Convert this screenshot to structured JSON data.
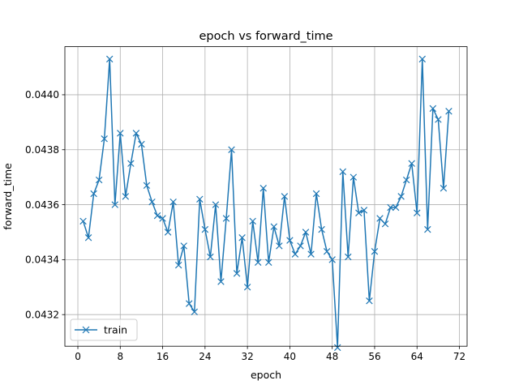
{
  "chart_data": {
    "type": "line",
    "title": "epoch vs forward_time",
    "xlabel": "epoch",
    "ylabel": "forward_time",
    "xlim": [
      -2.45,
      73.45
    ],
    "ylim": [
      0.043085,
      0.044175
    ],
    "xticks": [
      0,
      8,
      16,
      24,
      32,
      40,
      48,
      56,
      64,
      72
    ],
    "xtick_labels": [
      "0",
      "8",
      "16",
      "24",
      "32",
      "40",
      "48",
      "56",
      "64",
      "72"
    ],
    "yticks": [
      0.0432,
      0.0434,
      0.0436,
      0.0438,
      0.044
    ],
    "ytick_labels": [
      "0.0432",
      "0.0434",
      "0.0436",
      "0.0438",
      "0.0440"
    ],
    "grid": true,
    "legend_position": "lower-left",
    "series": [
      {
        "name": "train",
        "color": "#1f77b4",
        "marker": "x",
        "x": [
          1,
          2,
          3,
          4,
          5,
          6,
          7,
          8,
          9,
          10,
          11,
          12,
          13,
          14,
          15,
          16,
          17,
          18,
          19,
          20,
          21,
          22,
          23,
          24,
          25,
          26,
          27,
          28,
          29,
          30,
          31,
          32,
          33,
          34,
          35,
          36,
          37,
          38,
          39,
          40,
          41,
          42,
          43,
          44,
          45,
          46,
          47,
          48,
          49,
          50,
          51,
          52,
          53,
          54,
          55,
          56,
          57,
          58,
          59,
          60,
          61,
          62,
          63,
          64,
          65,
          66,
          67,
          68,
          69,
          70
        ],
        "values": [
          0.04354,
          0.04348,
          0.04364,
          0.04369,
          0.04384,
          0.04413,
          0.0436,
          0.04386,
          0.04363,
          0.04375,
          0.04386,
          0.04382,
          0.04367,
          0.04361,
          0.04356,
          0.04355,
          0.0435,
          0.04361,
          0.04338,
          0.04345,
          0.04324,
          0.04321,
          0.04362,
          0.04351,
          0.04341,
          0.0436,
          0.04332,
          0.04355,
          0.0438,
          0.04335,
          0.04348,
          0.0433,
          0.04354,
          0.04339,
          0.04366,
          0.04339,
          0.04352,
          0.04345,
          0.04363,
          0.04347,
          0.04342,
          0.04345,
          0.0435,
          0.04342,
          0.04364,
          0.04351,
          0.04343,
          0.0434,
          0.04308,
          0.04372,
          0.04341,
          0.0437,
          0.04357,
          0.04358,
          0.04325,
          0.04343,
          0.04355,
          0.04353,
          0.04359,
          0.04359,
          0.04363,
          0.04369,
          0.04375,
          0.04357,
          0.04413,
          0.04351,
          0.04395,
          0.04391,
          0.04366,
          0.04394
        ]
      }
    ]
  }
}
